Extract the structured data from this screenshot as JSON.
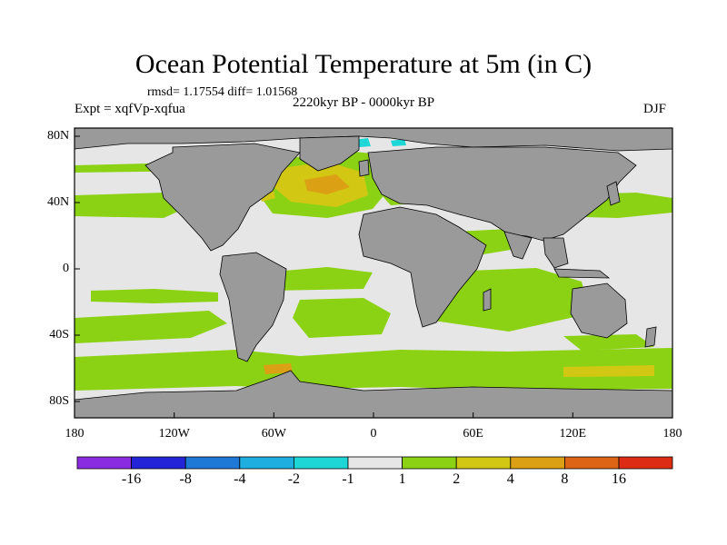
{
  "title": "Ocean Potential Temperature at 5m (in C)",
  "stats": "rmsd= 1.17554  diff= 1.01568",
  "experiment": "Expt = xqfVp-xqfua",
  "period": "2220kyr BP - 0000kyr BP",
  "season": "DJF",
  "axes": {
    "x_ticks": [
      "180",
      "120W",
      "60W",
      "0",
      "60E",
      "120E",
      "180"
    ],
    "y_ticks": [
      "80N",
      "40N",
      "0",
      "40S",
      "80S"
    ]
  },
  "colorbar": {
    "labels": [
      "-16",
      "-8",
      "-4",
      "-2",
      "-1",
      "1",
      "2",
      "4",
      "8",
      "16"
    ],
    "colors": [
      "#8a2be2",
      "#2323d8",
      "#1e78d6",
      "#1eaee0",
      "#1ed6d6",
      "#e6e6e6",
      "#8cd214",
      "#d2c814",
      "#dca014",
      "#dc6414",
      "#dc2d14"
    ]
  },
  "palette": {
    "land": "#9a9a9a",
    "ocean_neutral": "#e6e6e6",
    "warm1": "#8cd214",
    "warm2": "#d2c814",
    "warm3": "#dca014",
    "cool": "#1ed6d6"
  }
}
